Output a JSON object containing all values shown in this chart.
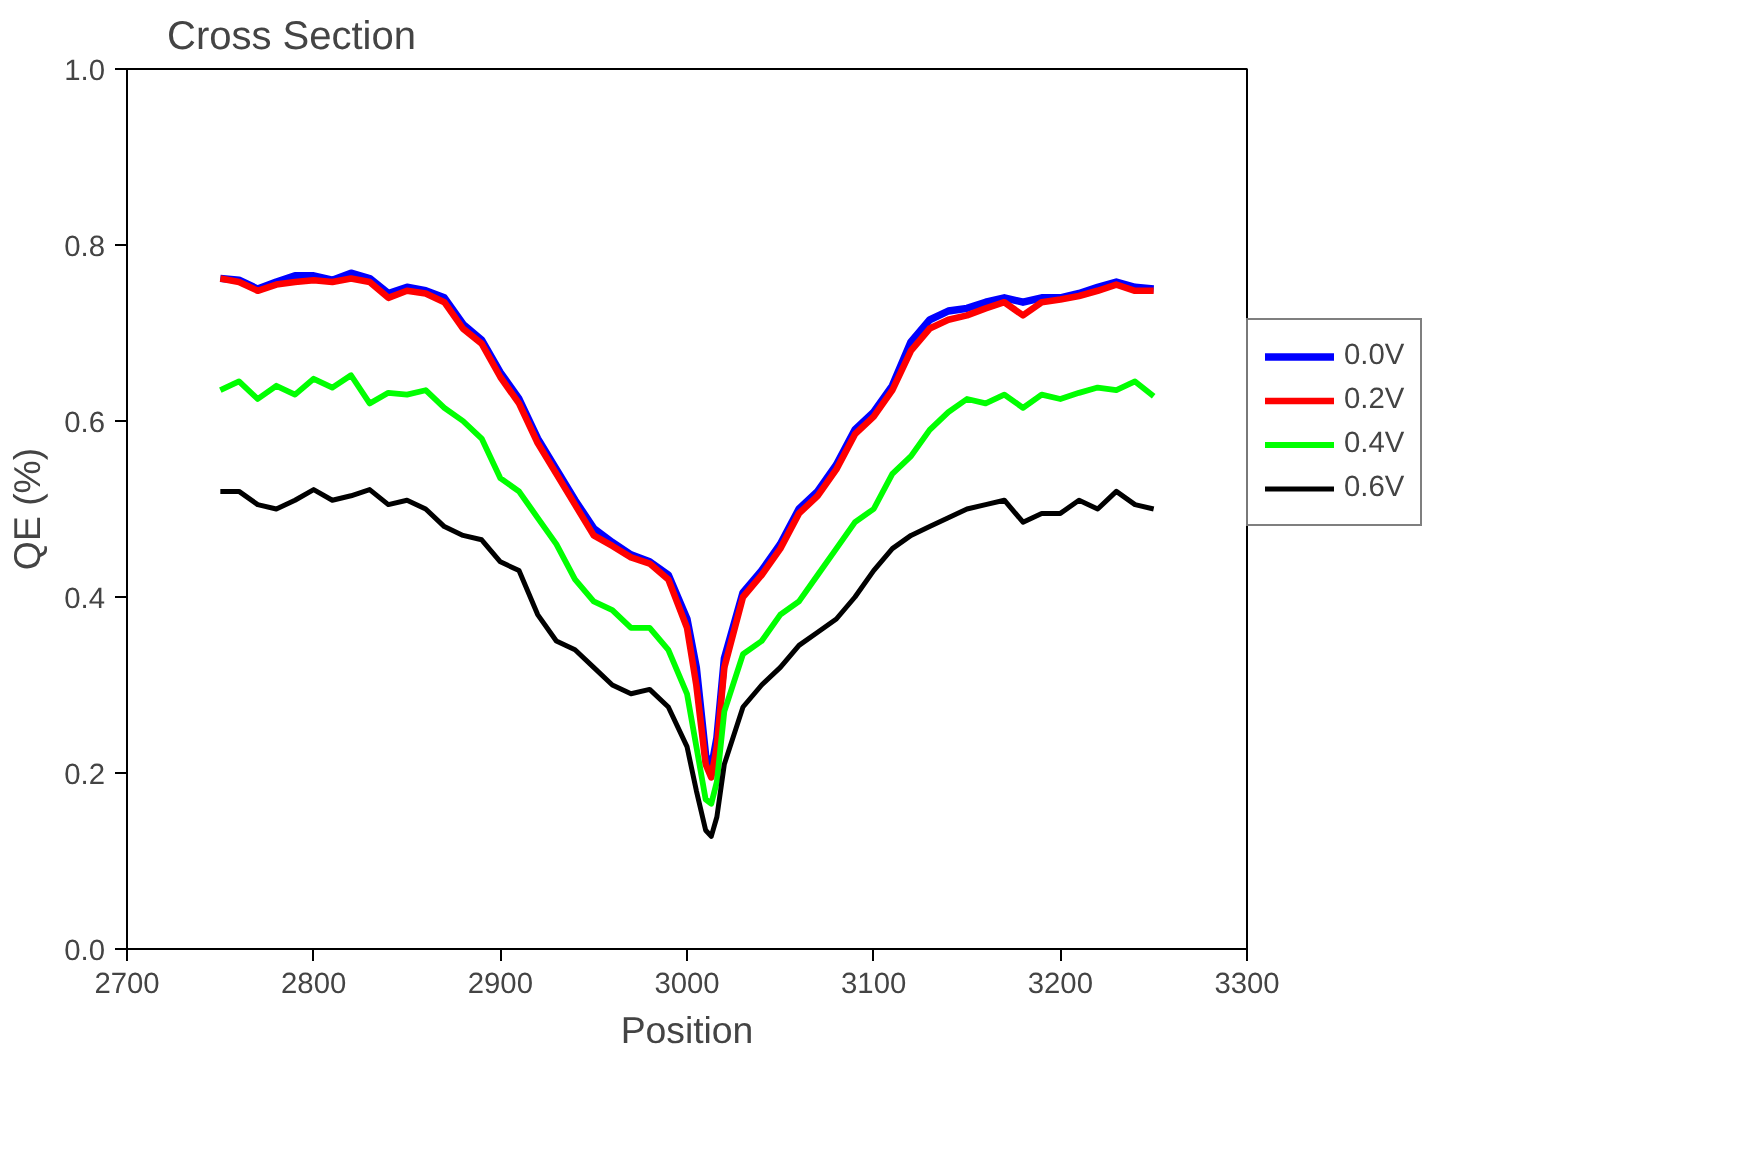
{
  "chart_data": {
    "type": "line",
    "title": "Cross Section",
    "xlabel": "Position",
    "ylabel": "QE (%)",
    "x": [
      2750,
      2760,
      2770,
      2780,
      2790,
      2800,
      2810,
      2820,
      2830,
      2840,
      2850,
      2860,
      2870,
      2880,
      2890,
      2900,
      2910,
      2920,
      2930,
      2940,
      2950,
      2960,
      2970,
      2980,
      2990,
      3000,
      3005,
      3010,
      3013,
      3016,
      3020,
      3030,
      3040,
      3050,
      3060,
      3070,
      3080,
      3090,
      3100,
      3110,
      3120,
      3130,
      3140,
      3150,
      3160,
      3170,
      3180,
      3190,
      3200,
      3210,
      3220,
      3230,
      3240,
      3250
    ],
    "series": [
      {
        "name": "0.0V",
        "color": "#0000ff",
        "values": [
          0.762,
          0.76,
          0.75,
          0.758,
          0.765,
          0.765,
          0.76,
          0.768,
          0.762,
          0.745,
          0.752,
          0.748,
          0.74,
          0.71,
          0.692,
          0.655,
          0.625,
          0.58,
          0.545,
          0.51,
          0.478,
          0.462,
          0.448,
          0.44,
          0.425,
          0.375,
          0.32,
          0.22,
          0.205,
          0.24,
          0.33,
          0.405,
          0.43,
          0.46,
          0.5,
          0.52,
          0.55,
          0.59,
          0.61,
          0.64,
          0.69,
          0.715,
          0.725,
          0.728,
          0.735,
          0.74,
          0.735,
          0.74,
          0.74,
          0.745,
          0.752,
          0.758,
          0.752,
          0.75
        ]
      },
      {
        "name": "0.2V",
        "color": "#ff0000",
        "values": [
          0.762,
          0.758,
          0.748,
          0.755,
          0.758,
          0.76,
          0.758,
          0.762,
          0.758,
          0.74,
          0.748,
          0.745,
          0.735,
          0.705,
          0.688,
          0.65,
          0.62,
          0.575,
          0.54,
          0.505,
          0.47,
          0.458,
          0.445,
          0.438,
          0.42,
          0.365,
          0.3,
          0.21,
          0.195,
          0.23,
          0.32,
          0.4,
          0.425,
          0.455,
          0.495,
          0.515,
          0.545,
          0.585,
          0.605,
          0.635,
          0.68,
          0.705,
          0.715,
          0.72,
          0.728,
          0.735,
          0.72,
          0.735,
          0.738,
          0.742,
          0.748,
          0.755,
          0.748,
          0.748
        ]
      },
      {
        "name": "0.4V",
        "color": "#00ff00",
        "values": [
          0.635,
          0.645,
          0.625,
          0.64,
          0.63,
          0.648,
          0.638,
          0.652,
          0.62,
          0.632,
          0.63,
          0.635,
          0.615,
          0.6,
          0.58,
          0.535,
          0.52,
          0.49,
          0.46,
          0.42,
          0.395,
          0.385,
          0.365,
          0.365,
          0.34,
          0.29,
          0.23,
          0.17,
          0.165,
          0.19,
          0.27,
          0.335,
          0.35,
          0.38,
          0.395,
          0.425,
          0.455,
          0.485,
          0.5,
          0.54,
          0.56,
          0.59,
          0.61,
          0.625,
          0.62,
          0.63,
          0.615,
          0.63,
          0.625,
          0.632,
          0.638,
          0.635,
          0.645,
          0.628
        ]
      },
      {
        "name": "0.6V",
        "color": "#000000",
        "values": [
          0.52,
          0.52,
          0.505,
          0.5,
          0.51,
          0.522,
          0.51,
          0.515,
          0.522,
          0.505,
          0.51,
          0.5,
          0.48,
          0.47,
          0.465,
          0.44,
          0.43,
          0.38,
          0.35,
          0.34,
          0.32,
          0.3,
          0.29,
          0.295,
          0.275,
          0.23,
          0.18,
          0.135,
          0.128,
          0.15,
          0.21,
          0.275,
          0.3,
          0.32,
          0.345,
          0.36,
          0.375,
          0.4,
          0.43,
          0.455,
          0.47,
          0.48,
          0.49,
          0.5,
          0.505,
          0.51,
          0.485,
          0.495,
          0.495,
          0.51,
          0.5,
          0.52,
          0.505,
          0.5
        ]
      }
    ],
    "xlim": [
      2700,
      3300
    ],
    "xticks": [
      2700,
      2800,
      2900,
      3000,
      3100,
      3200,
      3300
    ],
    "ylim": [
      0,
      1
    ],
    "yticks": [
      {
        "value": 0,
        "label": "0.0"
      },
      0.2,
      0.4,
      0.6,
      0.8,
      {
        "value": 1,
        "label": "1.0"
      }
    ],
    "grid": false,
    "legend": "right",
    "marker": "none",
    "line_style": "solid"
  }
}
